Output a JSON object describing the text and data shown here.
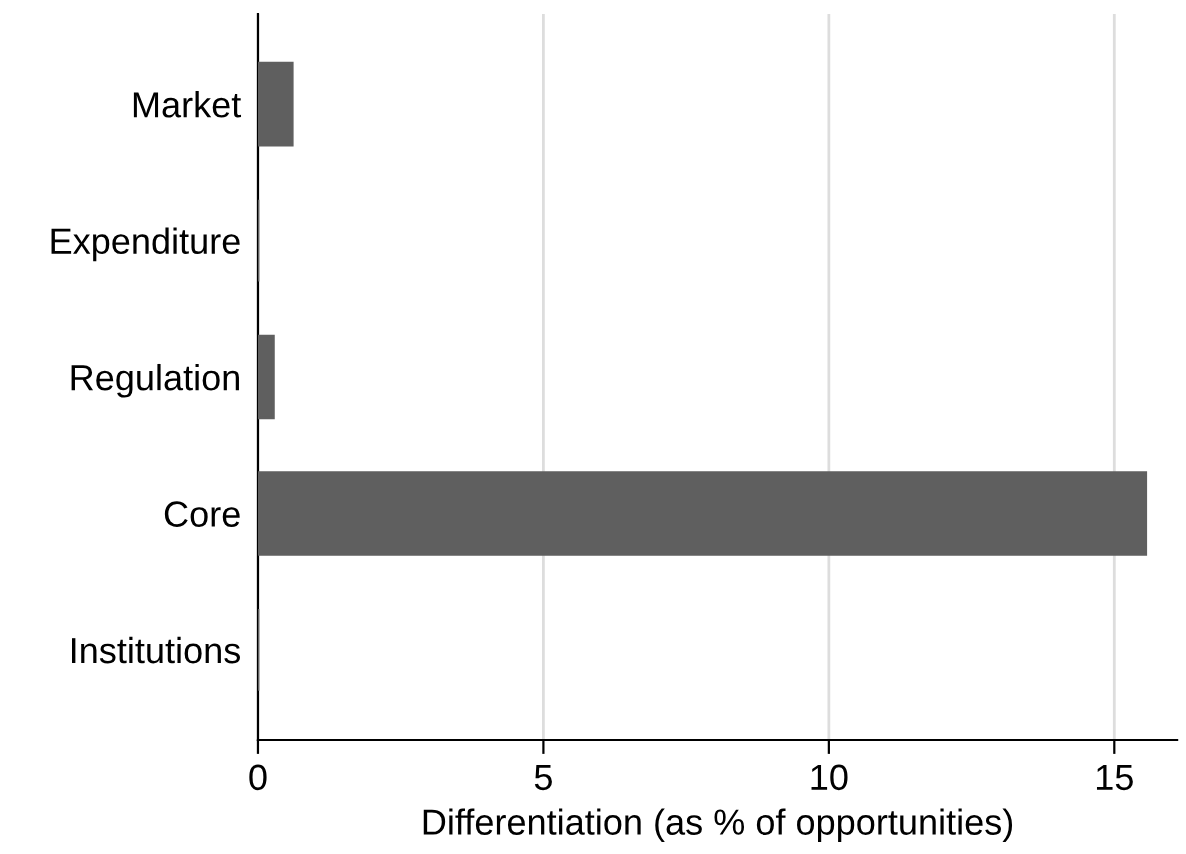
{
  "chart_data": {
    "type": "bar",
    "orientation": "horizontal",
    "categories": [
      "Market",
      "Expenditure",
      "Regulation",
      "Core",
      "Institutions"
    ],
    "values": [
      0.6,
      0,
      0.27,
      15.55,
      0
    ],
    "color": "#5f5f5f",
    "xlabel": "Differentiation (as % of opportunities)",
    "xlim": [
      0,
      16.1
    ],
    "xticks": [
      0,
      5,
      10,
      15
    ],
    "grid": "x"
  }
}
